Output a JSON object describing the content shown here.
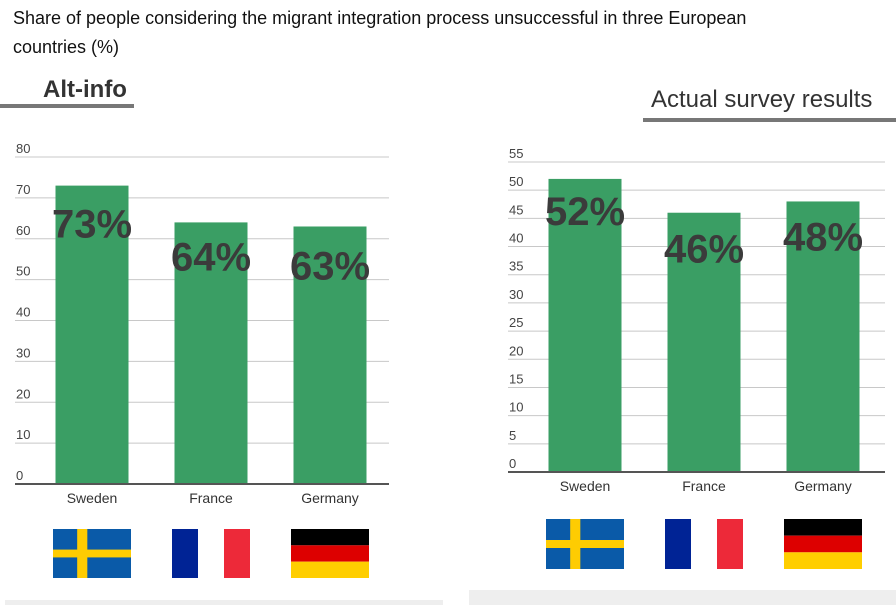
{
  "page": {
    "title": "Share of people considering the migrant integration process unsuccessful in three European countries (%)"
  },
  "panels": [
    {
      "header": "Alt-info"
    },
    {
      "header": "Actual survey results"
    }
  ],
  "chart_data": [
    {
      "type": "bar",
      "title": "Alt-info",
      "categories": [
        "Sweden",
        "France",
        "Germany"
      ],
      "values": [
        73,
        64,
        63
      ],
      "data_labels": [
        "73%",
        "64%",
        "63%"
      ],
      "ylim": [
        0,
        80
      ],
      "yticks": [
        "0",
        "10",
        "20",
        "30",
        "40",
        "50",
        "60",
        "70",
        "80"
      ],
      "grid": true,
      "bar_color": "#3a9e64"
    },
    {
      "type": "bar",
      "title": "Actual survey results",
      "categories": [
        "Sweden",
        "France",
        "Germany"
      ],
      "values": [
        52,
        46,
        48
      ],
      "data_labels": [
        "52%",
        "46%",
        "48%"
      ],
      "ylim": [
        0,
        55
      ],
      "yticks": [
        "0",
        "5",
        "10",
        "15",
        "20",
        "25",
        "30",
        "35",
        "40",
        "45",
        "50",
        "55"
      ],
      "grid": true,
      "bar_color": "#3a9e64"
    }
  ],
  "flags": [
    {
      "icon": "sweden-flag-icon",
      "colors": [
        "#0a5aa8",
        "#fecc02"
      ]
    },
    {
      "icon": "france-flag-icon",
      "colors": [
        "#002395",
        "#ffffff",
        "#ed2939"
      ]
    },
    {
      "icon": "germany-flag-icon",
      "colors": [
        "#000000",
        "#dd0000",
        "#ffce00"
      ]
    }
  ]
}
